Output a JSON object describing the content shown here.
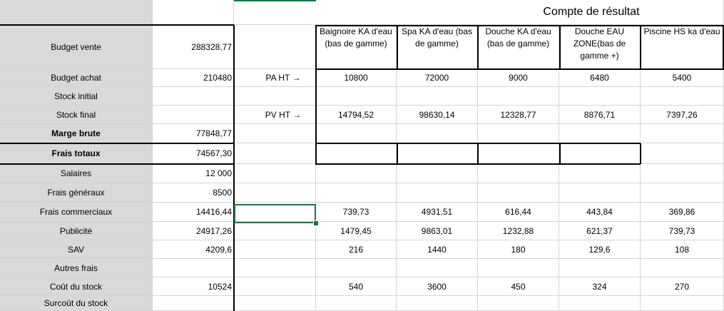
{
  "title": "Compte de résultat",
  "arrows": {
    "pa": "PA HT →",
    "pv": "PV HT →"
  },
  "products": [
    "Baignoire KA d'eau (bas de gamme)",
    "Spa KA d'eau (bas de gamme)",
    "Douche KA d'eau (bas de gamme)",
    "Douche EAU ZONE(bas de gamme +)",
    "Piscine HS ka d'eau"
  ],
  "rows": [
    {
      "label": "Budget vente",
      "value": "288328,77",
      "bold": false
    },
    {
      "label": "Budget achat",
      "value": "210480",
      "bold": false
    },
    {
      "label": "Stock initial",
      "value": "",
      "bold": false
    },
    {
      "label": "Stock final",
      "value": "",
      "bold": false
    },
    {
      "label": "Marge brute",
      "value": "77848,77",
      "bold": true
    },
    {
      "label": "Frais totaux",
      "value": "74567,30",
      "bold": true
    },
    {
      "label": "Salaires",
      "value": "12 000",
      "bold": false
    },
    {
      "label": "Frais généraux",
      "value": "8500",
      "bold": false
    },
    {
      "label": "Frais commerciaux",
      "value": "14416,44",
      "bold": false
    },
    {
      "label": "Publicité",
      "value": "24917,26",
      "bold": false
    },
    {
      "label": "SAV",
      "value": "4209,6",
      "bold": false
    },
    {
      "label": "Autres frais",
      "value": "",
      "bold": false
    },
    {
      "label": "Coût du stock",
      "value": "10524",
      "bold": false
    },
    {
      "label": "Surcoût du stock",
      "value": "",
      "bold": false
    }
  ],
  "product_values": {
    "pa_ht": [
      "10800",
      "72000",
      "9000",
      "6480",
      "5400"
    ],
    "pv_ht": [
      "14794,52",
      "98630,14",
      "12328,77",
      "8876,71",
      "7397,26"
    ],
    "frais_commerciaux": [
      "739,73",
      "4931,51",
      "616,44",
      "443,84",
      "369,86"
    ],
    "publicite": [
      "1479,45",
      "9863,01",
      "1232,88",
      "621,37",
      "739,73"
    ],
    "sav": [
      "216",
      "1440",
      "180",
      "129,6",
      "108"
    ],
    "cout_stock": [
      "540",
      "3600",
      "450",
      "324",
      "270"
    ]
  }
}
